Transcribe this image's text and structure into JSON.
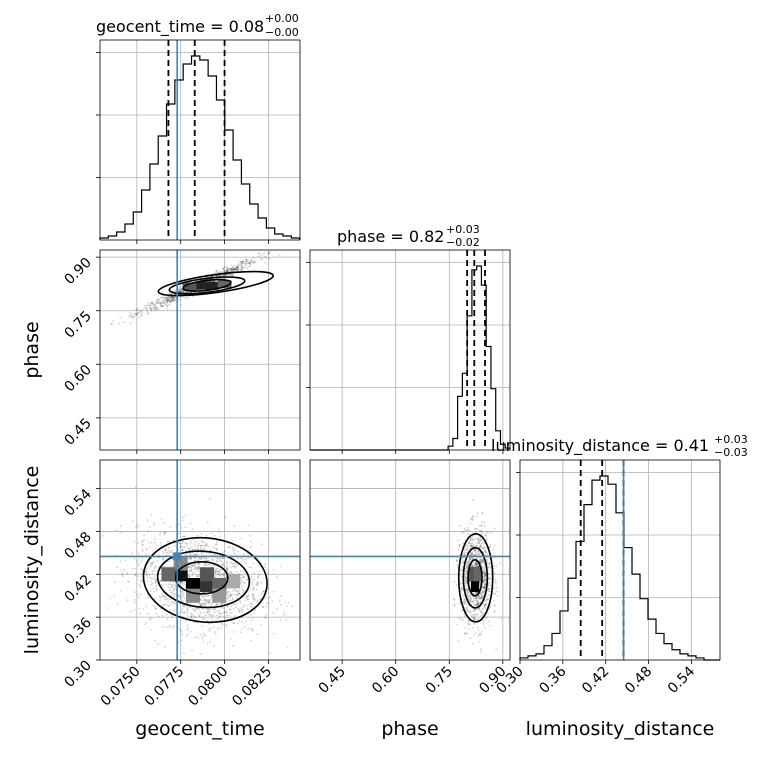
{
  "chart_data": {
    "type": "corner",
    "parameters": [
      "geocent_time",
      "phase",
      "luminosity_distance"
    ],
    "truths": {
      "geocent_time": 0.0773,
      "phase": null,
      "luminosity_distance": 0.445
    },
    "ranges": {
      "geocent_time": [
        0.0729,
        0.0843
      ],
      "phase": [
        0.36,
        0.92
      ],
      "luminosity_distance": [
        0.3,
        0.58
      ]
    },
    "titles": [
      {
        "param": "geocent_time",
        "text": "geocent_time = 0.08",
        "plus": "+0.00",
        "minus": "−0.00"
      },
      {
        "param": "phase",
        "text": "phase = 0.82",
        "plus": "+0.03",
        "minus": "−0.02"
      },
      {
        "param": "luminosity_distance",
        "text": "luminosity_distance = 0.41",
        "plus": "+0.03",
        "minus": "−0.03"
      }
    ],
    "axis_labels": {
      "geocent_time": "geocent_time",
      "phase": "phase",
      "luminosity_distance": "luminosity_distance"
    },
    "ticks": {
      "geocent_time": [
        "0.0750",
        "0.0775",
        "0.0800",
        "0.0825"
      ],
      "phase_x": [
        "0.45",
        "0.60",
        "0.75",
        "0.90"
      ],
      "phase_y": [
        "0.45",
        "0.60",
        "0.75",
        "0.90"
      ],
      "luminosity_distance_x": [
        "0.30",
        "0.36",
        "0.42",
        "0.48",
        "0.54"
      ],
      "luminosity_distance_y": [
        "0.30",
        "0.36",
        "0.42",
        "0.48",
        "0.54"
      ]
    },
    "histograms": {
      "geocent_time": {
        "edges": [
          0.0729,
          0.08428
        ],
        "counts": [
          1,
          2,
          4,
          8,
          14,
          25,
          38,
          52,
          68,
          80,
          88,
          92,
          90,
          82,
          70,
          55,
          40,
          28,
          18,
          11,
          6,
          3,
          2,
          1
        ],
        "quantiles": [
          0.0768,
          0.0783,
          0.08
        ]
      },
      "phase": {
        "edges": [
          0.36,
          0.92
        ],
        "counts": [
          0,
          0,
          0,
          0,
          0,
          0,
          0,
          0,
          0,
          0,
          0,
          0,
          0,
          0,
          0,
          0,
          0,
          0,
          0,
          0,
          0,
          0,
          0,
          0,
          0,
          0,
          0,
          0,
          0,
          2,
          6,
          28,
          40,
          70,
          94,
          96,
          86,
          54,
          32,
          10,
          3,
          1
        ],
        "quantiles": [
          0.8,
          0.82,
          0.85
        ]
      },
      "luminosity_distance": {
        "edges": [
          0.3,
          0.58
        ],
        "counts": [
          1,
          2,
          3,
          7,
          13,
          24,
          40,
          58,
          76,
          88,
          90,
          86,
          72,
          55,
          42,
          30,
          20,
          13,
          8,
          5,
          3,
          2,
          1,
          0,
          0
        ],
        "quantiles": [
          0.385,
          0.415,
          0.445
        ]
      }
    },
    "grid": true
  }
}
